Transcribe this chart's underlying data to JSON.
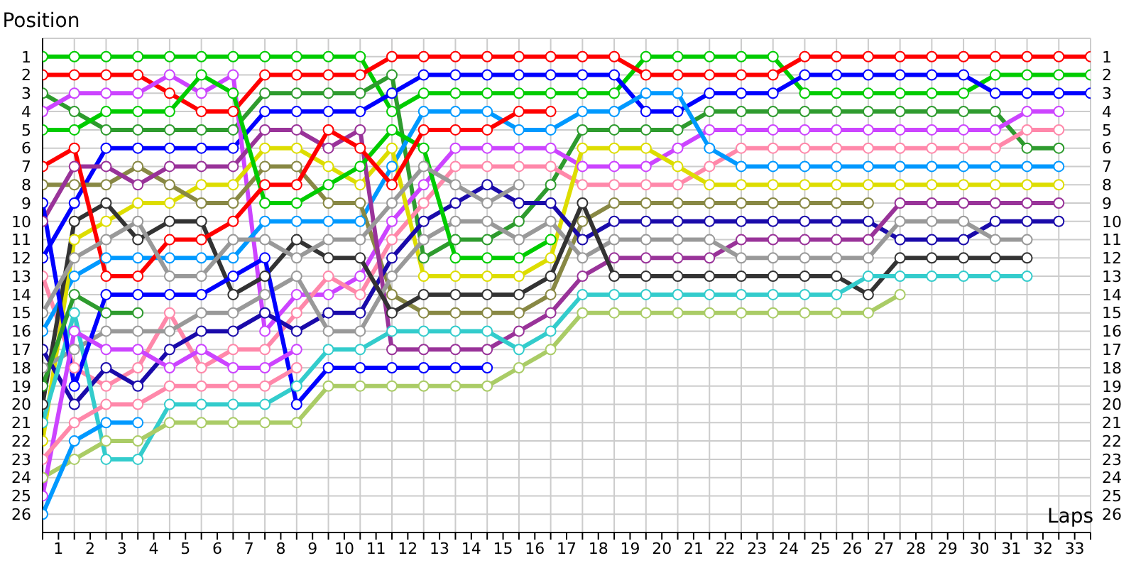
{
  "chart_data": {
    "type": "line",
    "ylabel": "Position",
    "xlabel": "Laps",
    "x": [
      0,
      1,
      2,
      3,
      4,
      5,
      6,
      7,
      8,
      9,
      10,
      11,
      12,
      13,
      14,
      15,
      16,
      17,
      18,
      19,
      20,
      21,
      22,
      23,
      24,
      25,
      26,
      27,
      28,
      29,
      30,
      31,
      32,
      33
    ],
    "xlim": [
      0,
      33
    ],
    "xticks": [
      {
        "value": 0,
        "label": null
      },
      {
        "value": 0.5,
        "label": "1"
      },
      {
        "value": 1,
        "label": null
      },
      {
        "value": 1.5,
        "label": "2"
      },
      {
        "value": 2,
        "label": null
      },
      {
        "value": 2.5,
        "label": "3"
      },
      {
        "value": 3,
        "label": null
      },
      {
        "value": 3.5,
        "label": "4"
      },
      {
        "value": 4,
        "label": null
      },
      {
        "value": 4.5,
        "label": "5"
      },
      {
        "value": 5,
        "label": null
      },
      {
        "value": 5.5,
        "label": "6"
      },
      {
        "value": 6,
        "label": null
      },
      {
        "value": 6.5,
        "label": "7"
      },
      {
        "value": 7,
        "label": null
      },
      {
        "value": 7.5,
        "label": "8"
      },
      {
        "value": 8,
        "label": null
      },
      {
        "value": 8.5,
        "label": "9"
      },
      {
        "value": 9,
        "label": null
      },
      {
        "value": 9.5,
        "label": "10"
      },
      {
        "value": 10,
        "label": null
      },
      {
        "value": 10.5,
        "label": "11"
      },
      {
        "value": 11,
        "label": null
      },
      {
        "value": 11.5,
        "label": "12"
      },
      {
        "value": 12,
        "label": null
      },
      {
        "value": 12.5,
        "label": "13"
      },
      {
        "value": 13,
        "label": null
      },
      {
        "value": 13.5,
        "label": "14"
      },
      {
        "value": 14,
        "label": null
      },
      {
        "value": 14.5,
        "label": "15"
      },
      {
        "value": 15,
        "label": null
      },
      {
        "value": 15.5,
        "label": "16"
      },
      {
        "value": 16,
        "label": null
      },
      {
        "value": 16.5,
        "label": "17"
      },
      {
        "value": 17,
        "label": null
      },
      {
        "value": 17.5,
        "label": "18"
      },
      {
        "value": 18,
        "label": null
      },
      {
        "value": 18.5,
        "label": "19"
      },
      {
        "value": 19,
        "label": null
      },
      {
        "value": 19.5,
        "label": "20"
      },
      {
        "value": 20,
        "label": null
      },
      {
        "value": 20.5,
        "label": "21"
      },
      {
        "value": 21,
        "label": null
      },
      {
        "value": 21.5,
        "label": "22"
      },
      {
        "value": 22,
        "label": null
      },
      {
        "value": 22.5,
        "label": "23"
      },
      {
        "value": 23,
        "label": null
      },
      {
        "value": 23.5,
        "label": "24"
      },
      {
        "value": 24,
        "label": null
      },
      {
        "value": 24.5,
        "label": "25"
      },
      {
        "value": 25,
        "label": null
      },
      {
        "value": 25.5,
        "label": "26"
      },
      {
        "value": 26,
        "label": null
      },
      {
        "value": 26.5,
        "label": "27"
      },
      {
        "value": 27,
        "label": null
      },
      {
        "value": 27.5,
        "label": "28"
      },
      {
        "value": 28,
        "label": null
      },
      {
        "value": 28.5,
        "label": "29"
      },
      {
        "value": 29,
        "label": null
      },
      {
        "value": 29.5,
        "label": "30"
      },
      {
        "value": 30,
        "label": null
      },
      {
        "value": 30.5,
        "label": "31"
      },
      {
        "value": 31,
        "label": null
      },
      {
        "value": 31.5,
        "label": "32"
      },
      {
        "value": 32,
        "label": null
      },
      {
        "value": 32.5,
        "label": "33"
      },
      {
        "value": 33,
        "label": null
      }
    ],
    "ylim": [
      27,
      0
    ],
    "yticks": [
      1,
      2,
      3,
      4,
      5,
      6,
      7,
      8,
      9,
      10,
      11,
      12,
      13,
      14,
      15,
      16,
      17,
      18,
      19,
      20,
      21,
      22,
      23,
      24,
      25,
      26
    ],
    "y2lim": [
      27,
      0
    ],
    "y2ticks": [
      1,
      2,
      3,
      4,
      5,
      6,
      7,
      8,
      9,
      10,
      11,
      12,
      13,
      14,
      15,
      16,
      17,
      18,
      19,
      20,
      21,
      22,
      23,
      24,
      25,
      26
    ],
    "grid": true,
    "legend": false,
    "marker": "circle",
    "line_style": "solid",
    "series": [
      {
        "color": "#00cc00",
        "values": [
          1,
          1,
          1,
          1,
          1,
          1,
          1,
          1,
          1,
          1,
          1,
          4,
          3,
          3,
          3,
          3,
          3,
          3,
          3,
          1,
          1,
          1,
          1,
          1,
          3,
          3,
          3,
          3,
          3,
          3,
          2,
          2,
          2,
          2
        ]
      },
      {
        "color": "#ff0000",
        "values": [
          2,
          2,
          2,
          2,
          3,
          4,
          4,
          2,
          2,
          2,
          2,
          1,
          1,
          1,
          1,
          1,
          1,
          1,
          1,
          2,
          2,
          2,
          2,
          2,
          1,
          1,
          1,
          1,
          1,
          1,
          1,
          1,
          1,
          1
        ]
      },
      {
        "color": "#0000ff",
        "values": [
          12,
          9,
          6,
          6,
          6,
          6,
          6,
          4,
          4,
          4,
          4,
          3,
          2,
          2,
          2,
          2,
          2,
          2,
          2,
          4,
          4,
          3,
          3,
          3,
          2,
          2,
          2,
          2,
          2,
          2,
          3,
          3,
          3,
          3
        ]
      },
      {
        "color": "#2e9b2e",
        "values": [
          3,
          4,
          5,
          5,
          5,
          5,
          5,
          3,
          3,
          3,
          3,
          2,
          12,
          11,
          11,
          10,
          8,
          5,
          5,
          5,
          5,
          4,
          4,
          4,
          4,
          4,
          4,
          4,
          4,
          4,
          4,
          6,
          6,
          null
        ]
      },
      {
        "color": "#cc44ff",
        "values": [
          4,
          3,
          3,
          3,
          2,
          3,
          2,
          16,
          14,
          14,
          13,
          10,
          8,
          6,
          6,
          6,
          6,
          7,
          7,
          7,
          6,
          5,
          5,
          5,
          5,
          5,
          5,
          5,
          5,
          5,
          5,
          4,
          4,
          null
        ]
      },
      {
        "color": "#ff88aa",
        "values": [
          13,
          18,
          19,
          18,
          15,
          18,
          17,
          17,
          15,
          13,
          14,
          11,
          9,
          7,
          7,
          7,
          7,
          8,
          8,
          8,
          8,
          7,
          6,
          6,
          6,
          6,
          6,
          6,
          6,
          6,
          6,
          5,
          5,
          null
        ]
      },
      {
        "color": "#0099ff",
        "values": [
          16,
          13,
          12,
          12,
          12,
          12,
          12,
          10,
          10,
          10,
          10,
          7,
          4,
          4,
          4,
          5,
          5,
          4,
          4,
          3,
          3,
          6,
          7,
          7,
          7,
          7,
          7,
          7,
          7,
          7,
          7,
          7,
          7,
          null
        ]
      },
      {
        "color": "#dddd00",
        "values": [
          22,
          11,
          10,
          9,
          9,
          8,
          8,
          6,
          6,
          7,
          8,
          6,
          13,
          13,
          13,
          13,
          12,
          6,
          6,
          6,
          7,
          8,
          8,
          8,
          8,
          8,
          8,
          8,
          8,
          8,
          8,
          8,
          8,
          null
        ]
      },
      {
        "color": "#888844",
        "values": [
          8,
          8,
          8,
          7,
          8,
          9,
          9,
          7,
          7,
          9,
          9,
          14,
          15,
          15,
          15,
          15,
          14,
          10,
          9,
          9,
          9,
          9,
          9,
          9,
          9,
          9,
          9,
          null,
          null,
          null,
          null,
          null,
          null,
          null
        ]
      },
      {
        "color": "#1a0aaa",
        "values": [
          17,
          20,
          18,
          19,
          17,
          16,
          16,
          15,
          16,
          15,
          15,
          12,
          10,
          9,
          8,
          9,
          9,
          11,
          10,
          10,
          10,
          10,
          10,
          10,
          10,
          10,
          10,
          11,
          11,
          11,
          10,
          10,
          10,
          null
        ]
      },
      {
        "color": "#993399",
        "values": [
          10,
          7,
          7,
          8,
          7,
          7,
          7,
          5,
          5,
          6,
          5,
          17,
          17,
          17,
          17,
          16,
          15,
          13,
          12,
          12,
          12,
          12,
          11,
          11,
          11,
          11,
          11,
          9,
          9,
          9,
          9,
          9,
          9,
          null
        ]
      },
      {
        "color": "#999999",
        "values": [
          18,
          17,
          16,
          16,
          16,
          15,
          15,
          14,
          13,
          16,
          16,
          13,
          11,
          10,
          10,
          11,
          10,
          12,
          11,
          11,
          11,
          11,
          12,
          12,
          12,
          12,
          12,
          10,
          10,
          10,
          11,
          11,
          null,
          null
        ]
      },
      {
        "color": "#333333",
        "values": [
          20,
          10,
          9,
          11,
          10,
          10,
          14,
          13,
          11,
          12,
          12,
          15,
          14,
          14,
          14,
          14,
          13,
          9,
          13,
          13,
          13,
          13,
          13,
          13,
          13,
          13,
          14,
          12,
          12,
          12,
          12,
          12,
          null,
          null
        ]
      },
      {
        "color": "#33cccc",
        "values": [
          21,
          15,
          23,
          23,
          20,
          20,
          20,
          20,
          19,
          17,
          17,
          16,
          16,
          16,
          16,
          17,
          16,
          14,
          14,
          14,
          14,
          14,
          14,
          14,
          14,
          14,
          13,
          13,
          13,
          13,
          13,
          13,
          null,
          null
        ]
      },
      {
        "color": "#aacc66",
        "values": [
          24,
          23,
          22,
          22,
          21,
          21,
          21,
          21,
          21,
          19,
          19,
          19,
          19,
          19,
          19,
          18,
          17,
          15,
          15,
          15,
          15,
          15,
          15,
          15,
          15,
          15,
          15,
          14,
          null,
          null,
          null,
          null,
          null,
          null
        ]
      },
      {
        "color": "#00cc00",
        "values": [
          5,
          5,
          4,
          4,
          4,
          2,
          3,
          9,
          9,
          8,
          7,
          5,
          6,
          12,
          12,
          12,
          11,
          null,
          null,
          null,
          null,
          null,
          null,
          null,
          null,
          null,
          null,
          null,
          null,
          null,
          null,
          null,
          null,
          null
        ]
      },
      {
        "color": "#ff0000",
        "values": [
          7,
          6,
          13,
          13,
          11,
          11,
          10,
          8,
          8,
          5,
          6,
          8,
          5,
          5,
          5,
          4,
          4,
          null,
          null,
          null,
          null,
          null,
          null,
          null,
          null,
          null,
          null,
          null,
          null,
          null,
          null,
          null,
          null,
          null
        ]
      },
      {
        "color": "#0000ff",
        "values": [
          9,
          19,
          14,
          14,
          14,
          14,
          13,
          12,
          20,
          18,
          18,
          18,
          18,
          18,
          18,
          null,
          null,
          null,
          null,
          null,
          null,
          null,
          null,
          null,
          null,
          null,
          null,
          null,
          null,
          null,
          null,
          null,
          null,
          null
        ]
      },
      {
        "color": "#2e9b2e",
        "values": [
          19,
          14,
          15,
          15,
          null,
          null,
          null,
          null,
          null,
          null,
          null,
          null,
          null,
          null,
          null,
          null,
          null,
          null,
          null,
          null,
          null,
          null,
          null,
          null,
          null,
          null,
          null,
          null,
          null,
          null,
          null,
          null,
          null,
          null
        ]
      },
      {
        "color": "#cc44ff",
        "values": [
          25,
          16,
          17,
          17,
          18,
          17,
          18,
          18,
          17,
          null,
          null,
          null,
          null,
          null,
          null,
          null,
          null,
          null,
          null,
          null,
          null,
          null,
          null,
          null,
          null,
          null,
          null,
          null,
          null,
          null,
          null,
          null,
          null,
          null
        ]
      },
      {
        "color": "#ff88aa",
        "values": [
          23,
          21,
          20,
          20,
          19,
          19,
          19,
          19,
          18,
          null,
          null,
          null,
          null,
          null,
          null,
          null,
          null,
          null,
          null,
          null,
          null,
          null,
          null,
          null,
          null,
          null,
          null,
          null,
          null,
          null,
          null,
          null,
          null,
          null
        ]
      },
      {
        "color": "#0099ff",
        "values": [
          26,
          22,
          21,
          21,
          null,
          null,
          null,
          null,
          null,
          null,
          null,
          null,
          null,
          null,
          null,
          null,
          null,
          null,
          null,
          null,
          null,
          null,
          null,
          null,
          null,
          null,
          null,
          null,
          null,
          null,
          null,
          null,
          null,
          null
        ]
      },
      {
        "color": "#999999",
        "values": [
          15,
          12,
          11,
          10,
          13,
          13,
          11,
          11,
          12,
          11,
          11,
          9,
          7,
          8,
          9,
          8,
          null,
          null,
          null,
          null,
          null,
          null,
          null,
          null,
          null,
          null,
          null,
          null,
          null,
          null,
          null,
          null,
          null,
          null
        ]
      }
    ]
  }
}
